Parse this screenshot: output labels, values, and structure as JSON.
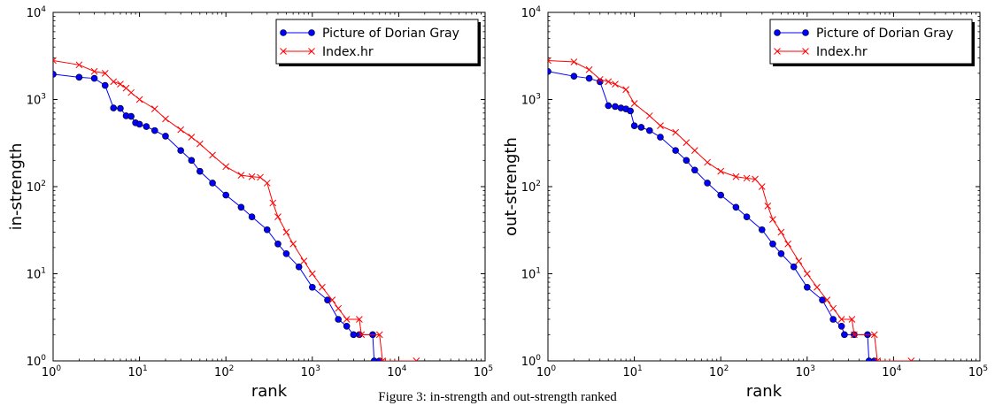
{
  "caption": "Figure 3: in-strength and out-strength ranked",
  "chart_data": [
    {
      "type": "line",
      "xscale": "log",
      "yscale": "log",
      "xlim": [
        1,
        100000
      ],
      "ylim": [
        1,
        10000
      ],
      "xlabel": "rank",
      "ylabel": "in-strength",
      "xticks": [
        {
          "v": 1,
          "m": "0"
        },
        {
          "v": 10,
          "m": "1"
        },
        {
          "v": 100,
          "m": "2"
        },
        {
          "v": 1000,
          "m": "3"
        },
        {
          "v": 10000,
          "m": "4"
        },
        {
          "v": 100000,
          "m": "5"
        }
      ],
      "yticks": [
        {
          "v": 1,
          "m": "0"
        },
        {
          "v": 10,
          "m": "1"
        },
        {
          "v": 100,
          "m": "2"
        },
        {
          "v": 1000,
          "m": "3"
        },
        {
          "v": 10000,
          "m": "4"
        }
      ],
      "tick_base": "10",
      "legend": "top-right",
      "series": [
        {
          "name": "Picture of Dorian Gray",
          "color": "#0000ff",
          "marker": "circle",
          "points": [
            [
              1,
              1950
            ],
            [
              2,
              1800
            ],
            [
              3,
              1750
            ],
            [
              4,
              1450
            ],
            [
              5,
              800
            ],
            [
              6,
              790
            ],
            [
              7,
              650
            ],
            [
              8,
              640
            ],
            [
              9,
              540
            ],
            [
              10,
              520
            ],
            [
              12,
              490
            ],
            [
              15,
              440
            ],
            [
              20,
              380
            ],
            [
              30,
              260
            ],
            [
              40,
              200
            ],
            [
              50,
              150
            ],
            [
              70,
              110
            ],
            [
              100,
              80
            ],
            [
              150,
              58
            ],
            [
              200,
              45
            ],
            [
              300,
              32
            ],
            [
              400,
              22
            ],
            [
              500,
              17
            ],
            [
              700,
              12
            ],
            [
              1000,
              7
            ],
            [
              1500,
              5
            ],
            [
              2000,
              3
            ],
            [
              2500,
              2.5
            ],
            [
              3000,
              2
            ],
            [
              3500,
              2
            ],
            [
              5000,
              2
            ],
            [
              5200,
              1
            ],
            [
              6000,
              1
            ]
          ]
        },
        {
          "name": "Index.hr",
          "color": "#ff0000",
          "marker": "x",
          "points": [
            [
              1,
              2800
            ],
            [
              2,
              2500
            ],
            [
              3,
              2100
            ],
            [
              4,
              2000
            ],
            [
              5,
              1600
            ],
            [
              6,
              1500
            ],
            [
              7,
              1350
            ],
            [
              8,
              1200
            ],
            [
              10,
              1000
            ],
            [
              15,
              780
            ],
            [
              20,
              600
            ],
            [
              30,
              450
            ],
            [
              40,
              370
            ],
            [
              50,
              310
            ],
            [
              70,
              230
            ],
            [
              100,
              170
            ],
            [
              150,
              135
            ],
            [
              200,
              130
            ],
            [
              250,
              128
            ],
            [
              300,
              110
            ],
            [
              350,
              65
            ],
            [
              400,
              45
            ],
            [
              500,
              30
            ],
            [
              600,
              22
            ],
            [
              800,
              14
            ],
            [
              1000,
              10
            ],
            [
              1300,
              7
            ],
            [
              1700,
              5
            ],
            [
              2000,
              4
            ],
            [
              2500,
              3
            ],
            [
              3500,
              3
            ],
            [
              3700,
              2
            ],
            [
              6000,
              2
            ],
            [
              6500,
              1
            ],
            [
              16000,
              1
            ]
          ]
        }
      ]
    },
    {
      "type": "line",
      "xscale": "log",
      "yscale": "log",
      "xlim": [
        1,
        100000
      ],
      "ylim": [
        1,
        10000
      ],
      "xlabel": "rank",
      "ylabel": "out-strength",
      "xticks": [
        {
          "v": 1,
          "m": "0"
        },
        {
          "v": 10,
          "m": "1"
        },
        {
          "v": 100,
          "m": "2"
        },
        {
          "v": 1000,
          "m": "3"
        },
        {
          "v": 10000,
          "m": "4"
        },
        {
          "v": 100000,
          "m": "5"
        }
      ],
      "yticks": [
        {
          "v": 1,
          "m": "0"
        },
        {
          "v": 10,
          "m": "1"
        },
        {
          "v": 100,
          "m": "2"
        },
        {
          "v": 1000,
          "m": "3"
        },
        {
          "v": 10000,
          "m": "4"
        }
      ],
      "tick_base": "10",
      "legend": "top-right",
      "series": [
        {
          "name": "Picture of Dorian Gray",
          "color": "#0000ff",
          "marker": "circle",
          "points": [
            [
              1,
              2100
            ],
            [
              2,
              1850
            ],
            [
              3,
              1750
            ],
            [
              4,
              1600
            ],
            [
              5,
              850
            ],
            [
              6,
              830
            ],
            [
              7,
              800
            ],
            [
              8,
              780
            ],
            [
              9,
              740
            ],
            [
              10,
              500
            ],
            [
              12,
              480
            ],
            [
              15,
              440
            ],
            [
              20,
              370
            ],
            [
              30,
              260
            ],
            [
              40,
              200
            ],
            [
              50,
              155
            ],
            [
              70,
              110
            ],
            [
              100,
              80
            ],
            [
              150,
              58
            ],
            [
              200,
              45
            ],
            [
              300,
              32
            ],
            [
              400,
              22
            ],
            [
              500,
              17
            ],
            [
              700,
              12
            ],
            [
              1000,
              7
            ],
            [
              1500,
              5
            ],
            [
              2000,
              3
            ],
            [
              2500,
              2.5
            ],
            [
              2700,
              2
            ],
            [
              3500,
              2
            ],
            [
              5000,
              2
            ],
            [
              5200,
              1
            ],
            [
              6000,
              1
            ]
          ]
        },
        {
          "name": "Index.hr",
          "color": "#ff0000",
          "marker": "x",
          "points": [
            [
              1,
              2800
            ],
            [
              2,
              2700
            ],
            [
              3,
              2200
            ],
            [
              4,
              1700
            ],
            [
              5,
              1600
            ],
            [
              6,
              1500
            ],
            [
              8,
              1300
            ],
            [
              10,
              900
            ],
            [
              15,
              650
            ],
            [
              20,
              500
            ],
            [
              30,
              420
            ],
            [
              40,
              320
            ],
            [
              50,
              260
            ],
            [
              70,
              190
            ],
            [
              100,
              150
            ],
            [
              150,
              130
            ],
            [
              200,
              125
            ],
            [
              250,
              122
            ],
            [
              300,
              100
            ],
            [
              350,
              60
            ],
            [
              400,
              42
            ],
            [
              500,
              30
            ],
            [
              600,
              22
            ],
            [
              800,
              14
            ],
            [
              1000,
              10
            ],
            [
              1300,
              7
            ],
            [
              1700,
              5
            ],
            [
              2000,
              4
            ],
            [
              2500,
              3
            ],
            [
              3300,
              3
            ],
            [
              3500,
              2
            ],
            [
              6000,
              2
            ],
            [
              6500,
              1
            ],
            [
              16000,
              1
            ]
          ]
        }
      ]
    }
  ]
}
